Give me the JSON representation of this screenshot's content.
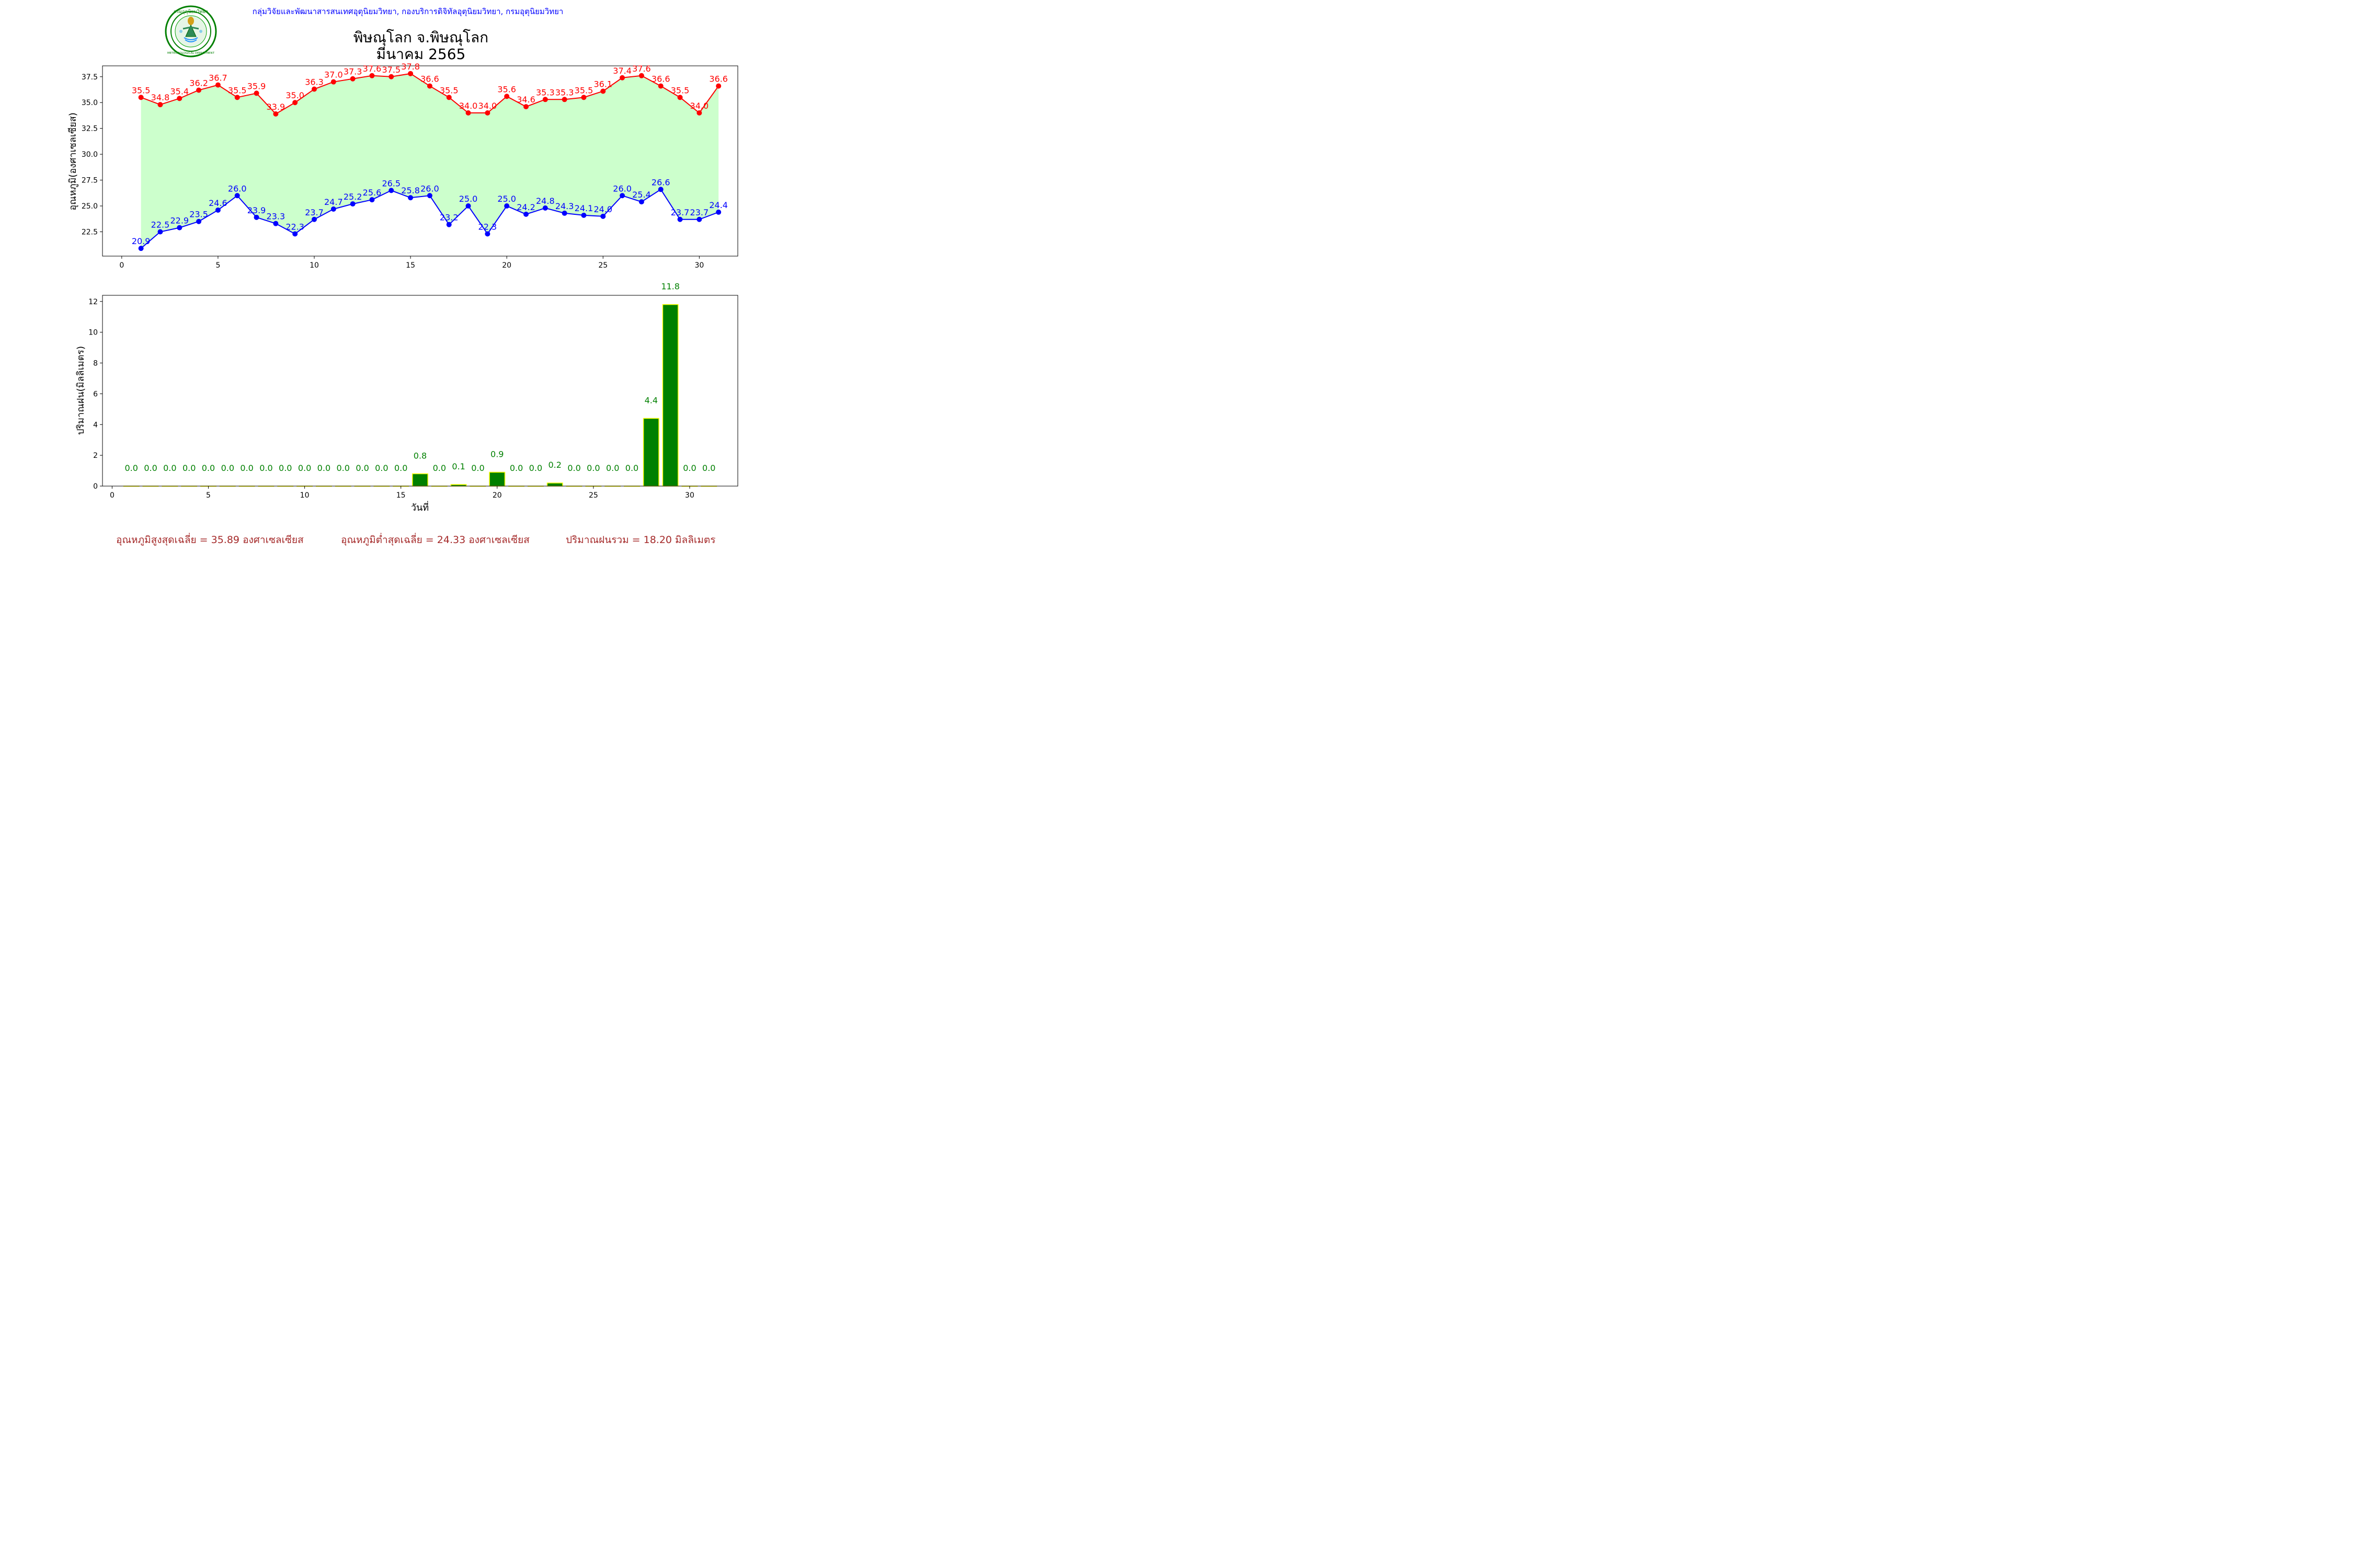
{
  "header": {
    "org_text": "กลุ่มวิจัยและพัฒนาสารสนเทศอุตุนิยมวิทยา, กองบริการดิจิทัลอุตุนิยมวิทยา, กรมอุตุนิยมวิทยา",
    "title": "พิษณุโลก จ.พิษณุโลก",
    "subtitle": "มีนาคม 2565",
    "logo_text_top": "กรมอุตุนิยมวิทยา",
    "logo_text_bottom": "METEOROLOGICAL DEPARTMENT"
  },
  "footer": {
    "avg_max": "อุณหภูมิสูงสุดเฉลี่ย = 35.89 องศาเซลเซียส",
    "avg_min": "อุณหภูมิต่ำสุดเฉลี่ย = 24.33 องศาเซลเซียส",
    "total_rain": "ปริมาณฝนรวม = 18.20 มิลลิเมตร"
  },
  "colors": {
    "max_line": "#ff0000",
    "min_line": "#0000ff",
    "fill": "#ccffcc",
    "rain_bar": "#008000",
    "rain_edge": "#ffff00",
    "rain_label": "#008000",
    "footer_text": "#a52a2a",
    "org_text": "#0000ff"
  },
  "chart_data": [
    {
      "type": "line",
      "ylabel": "อุณหภูมิ(องศาเซลเซียส)",
      "xlabel": "",
      "x": [
        1,
        2,
        3,
        4,
        5,
        6,
        7,
        8,
        9,
        10,
        11,
        12,
        13,
        14,
        15,
        16,
        17,
        18,
        19,
        20,
        21,
        22,
        23,
        24,
        25,
        26,
        27,
        28,
        29,
        30,
        31
      ],
      "series": [
        {
          "name": "max",
          "color": "#ff0000",
          "values": [
            35.5,
            34.8,
            35.4,
            36.2,
            36.7,
            35.5,
            35.9,
            33.9,
            35.0,
            36.3,
            37.0,
            37.3,
            37.6,
            37.5,
            37.8,
            36.6,
            35.5,
            34.0,
            34.0,
            35.6,
            34.6,
            35.3,
            35.3,
            35.5,
            36.1,
            37.4,
            37.6,
            36.6,
            35.5,
            34.0,
            36.6
          ]
        },
        {
          "name": "min",
          "color": "#0000ff",
          "values": [
            20.9,
            22.5,
            22.9,
            23.5,
            24.6,
            26.0,
            23.9,
            23.3,
            22.3,
            23.7,
            24.7,
            25.2,
            25.6,
            26.5,
            25.8,
            26.0,
            23.2,
            25.0,
            22.3,
            25.0,
            24.2,
            24.8,
            24.3,
            24.1,
            24.0,
            26.0,
            25.4,
            26.6,
            23.7,
            23.7,
            24.4
          ]
        }
      ],
      "xlim": [
        -1,
        32
      ],
      "ylim": [
        20.15,
        38.55
      ],
      "xticks": [
        0,
        5,
        10,
        15,
        20,
        25,
        30
      ],
      "yticks": [
        22.5,
        25.0,
        27.5,
        30.0,
        32.5,
        35.0,
        37.5
      ],
      "fill_between": true,
      "grid": false
    },
    {
      "type": "bar",
      "ylabel": "ปริมาณฝน(มิลลิเมตร)",
      "xlabel": "วันที่",
      "x": [
        1,
        2,
        3,
        4,
        5,
        6,
        7,
        8,
        9,
        10,
        11,
        12,
        13,
        14,
        15,
        16,
        17,
        18,
        19,
        20,
        21,
        22,
        23,
        24,
        25,
        26,
        27,
        28,
        29,
        30,
        31
      ],
      "values": [
        0.0,
        0.0,
        0.0,
        0.0,
        0.0,
        0.0,
        0.0,
        0.0,
        0.0,
        0.0,
        0.0,
        0.0,
        0.0,
        0.0,
        0.0,
        0.8,
        0.0,
        0.1,
        0.0,
        0.9,
        0.0,
        0.0,
        0.2,
        0.0,
        0.0,
        0.0,
        0.0,
        4.4,
        11.8,
        0.0,
        0.0
      ],
      "xlim": [
        -0.5,
        32.5
      ],
      "ylim": [
        0,
        12.4
      ],
      "xticks": [
        0,
        5,
        10,
        15,
        20,
        25,
        30
      ],
      "yticks": [
        0,
        2,
        4,
        6,
        8,
        10,
        12
      ],
      "grid": false
    }
  ]
}
